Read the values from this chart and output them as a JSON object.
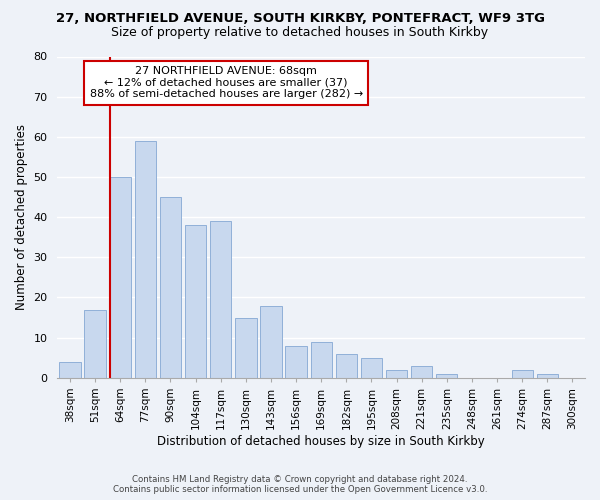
{
  "title_line1": "27, NORTHFIELD AVENUE, SOUTH KIRKBY, PONTEFRACT, WF9 3TG",
  "title_line2": "Size of property relative to detached houses in South Kirkby",
  "xlabel": "Distribution of detached houses by size in South Kirkby",
  "ylabel": "Number of detached properties",
  "bar_labels": [
    "38sqm",
    "51sqm",
    "64sqm",
    "77sqm",
    "90sqm",
    "104sqm",
    "117sqm",
    "130sqm",
    "143sqm",
    "156sqm",
    "169sqm",
    "182sqm",
    "195sqm",
    "208sqm",
    "221sqm",
    "235sqm",
    "248sqm",
    "261sqm",
    "274sqm",
    "287sqm",
    "300sqm"
  ],
  "bar_heights": [
    4,
    17,
    50,
    59,
    45,
    38,
    39,
    15,
    18,
    8,
    9,
    6,
    5,
    2,
    3,
    1,
    0,
    0,
    2,
    1,
    0
  ],
  "bar_color": "#c8d8ee",
  "bar_edge_color": "#90b0d8",
  "vline_color": "#cc0000",
  "vline_x_index": 2,
  "ylim": [
    0,
    80
  ],
  "annotation_line1": "27 NORTHFIELD AVENUE: 68sqm",
  "annotation_line2": "← 12% of detached houses are smaller (37)",
  "annotation_line3": "88% of semi-detached houses are larger (282) →",
  "annotation_box_color": "#ffffff",
  "annotation_box_edge": "#cc0000",
  "annotation_fontsize": 8.0,
  "footer_line1": "Contains HM Land Registry data © Crown copyright and database right 2024.",
  "footer_line2": "Contains public sector information licensed under the Open Government Licence v3.0.",
  "background_color": "#eef2f8",
  "grid_color": "#ffffff",
  "title1_fontsize": 9.5,
  "title2_fontsize": 9.0,
  "ylabel_fontsize": 8.5,
  "xlabel_fontsize": 8.5
}
